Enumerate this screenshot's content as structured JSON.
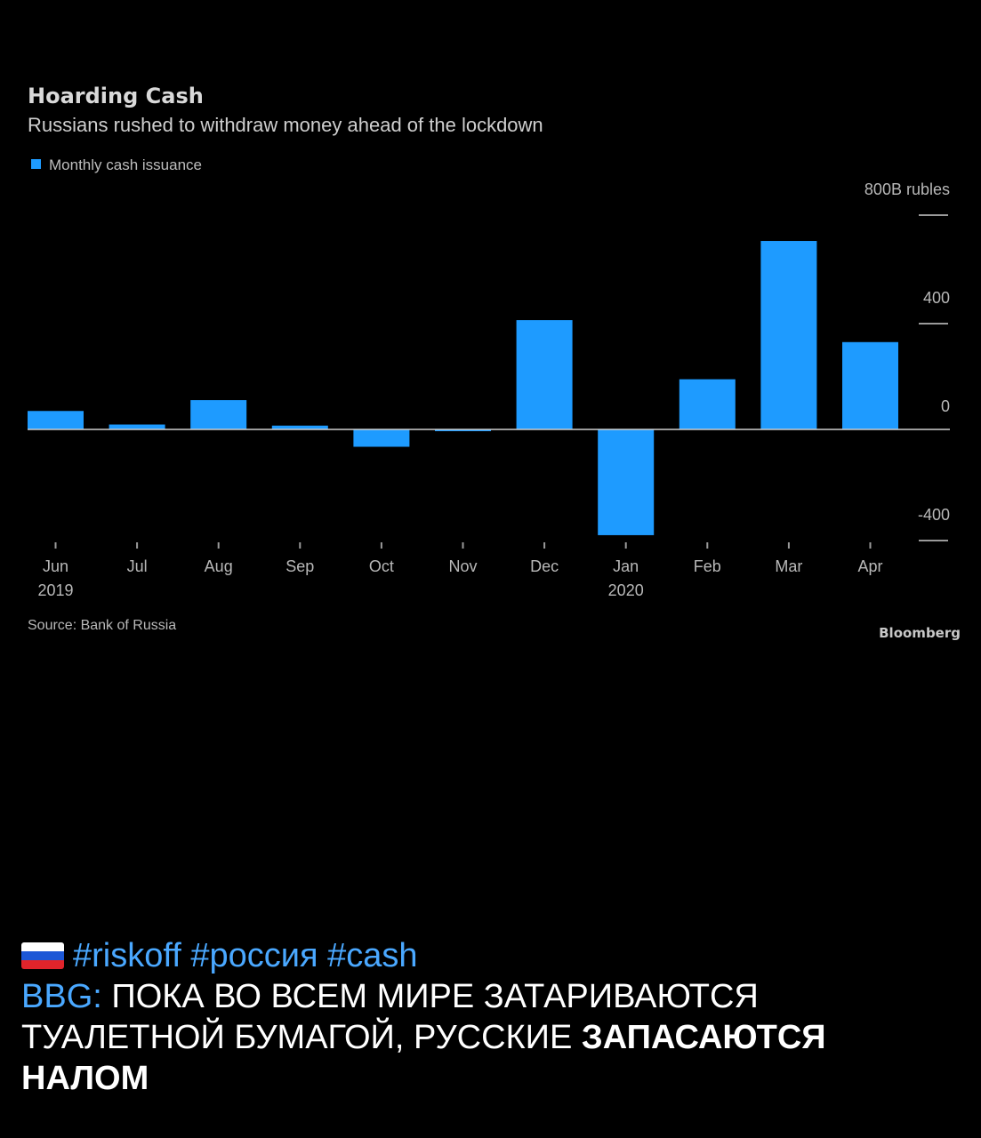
{
  "chart_data": {
    "type": "bar",
    "title": "Hoarding Cash",
    "subtitle": "Russians rushed to withdraw money ahead of the lockdown",
    "legend": [
      {
        "name": "Monthly cash issuance",
        "color": "#1e9bff"
      }
    ],
    "legend_position": "top-left",
    "categories": [
      "Jun",
      "Jul",
      "Aug",
      "Sep",
      "Oct",
      "Nov",
      "Dec",
      "Jan",
      "Feb",
      "Mar",
      "Apr"
    ],
    "category_sublabels": [
      "2019",
      "",
      "",
      "",
      "",
      "",
      "",
      "2020",
      "",
      "",
      ""
    ],
    "series": [
      {
        "name": "Monthly cash issuance",
        "values": [
          68,
          18,
          108,
          14,
          -64,
          -4,
          403,
          -390,
          185,
          695,
          322
        ]
      }
    ],
    "y_ticks": [
      "800B rubles",
      "400",
      "0",
      "-400"
    ],
    "y_tick_values": [
      800,
      400,
      0,
      -400
    ],
    "ylim": [
      -450,
      800
    ],
    "y_axis_side": "right",
    "grid": false,
    "source": "Source: Bank of Russia",
    "brand": "Bloomberg",
    "bar_color": "#1e9bff"
  },
  "post": {
    "flag_icon": "russia-flag-icon",
    "hashtags": [
      "#riskoff",
      "#россия",
      "#cash"
    ],
    "source_tag": "BBG",
    "text_line1": "ПОКА ВО ВСЕМ МИРЕ ЗАТАРИВАЮТСЯ",
    "text_line2_normal": "ТУАЛЕТНОЙ БУМАГОЙ, РУССКИЕ",
    "text_line2_bold": "ЗАПАСАЮТСЯ",
    "text_line3_bold": "НАЛОМ"
  }
}
